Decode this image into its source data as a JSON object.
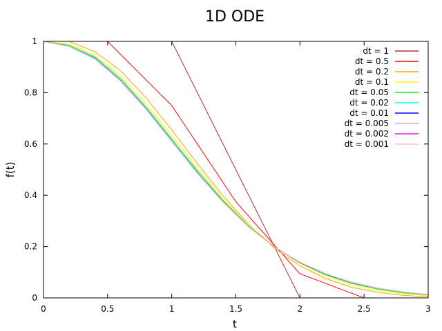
{
  "chart_data": {
    "type": "line",
    "title": "1D ODE",
    "xlabel": "t",
    "ylabel": "f(t)",
    "xlim": [
      0,
      3
    ],
    "ylim": [
      0,
      1
    ],
    "xticks": [
      "0",
      "0.5",
      "1",
      "1.5",
      "2",
      "2.5",
      "3"
    ],
    "yticks": [
      "0",
      "0.2",
      "0.4",
      "0.6",
      "0.8",
      "1"
    ],
    "grid": false,
    "legend_position": "top-right",
    "series": [
      {
        "name": "dt = 1",
        "color": "#b03030",
        "x": [
          0,
          1,
          2,
          3
        ],
        "y": [
          1,
          1,
          0,
          0
        ]
      },
      {
        "name": "dt = 0.5",
        "color": "#ff0000",
        "x": [
          0,
          0.5,
          1,
          1.5,
          2,
          2.5,
          3
        ],
        "y": [
          1,
          1,
          0.75,
          0.375,
          0.094,
          0,
          0
        ]
      },
      {
        "name": "dt = 0.2",
        "color": "#ffa500",
        "x": [
          0,
          0.2,
          0.4,
          0.6,
          0.8,
          1,
          1.2,
          1.4,
          1.6,
          1.8,
          2,
          2.2,
          2.4,
          2.6,
          2.8,
          3
        ],
        "y": [
          1,
          1,
          0.96,
          0.886,
          0.78,
          0.655,
          0.524,
          0.398,
          0.287,
          0.195,
          0.125,
          0.075,
          0.042,
          0.022,
          0.01,
          0.004
        ]
      },
      {
        "name": "dt = 0.1",
        "color": "#ffff00",
        "x": [
          0,
          0.2,
          0.4,
          0.6,
          0.8,
          1,
          1.2,
          1.4,
          1.6,
          1.8,
          2,
          2.2,
          2.4,
          2.6,
          2.8,
          3
        ],
        "y": [
          1,
          0.99,
          0.946,
          0.866,
          0.757,
          0.633,
          0.507,
          0.389,
          0.285,
          0.2,
          0.134,
          0.085,
          0.052,
          0.03,
          0.016,
          0.008
        ]
      },
      {
        "name": "dt = 0.05",
        "color": "#00ff00",
        "x": [
          0,
          0.2,
          0.4,
          0.6,
          0.8,
          1,
          1.2,
          1.4,
          1.6,
          1.8,
          2,
          2.2,
          2.4,
          2.6,
          2.8,
          3
        ],
        "y": [
          1,
          0.985,
          0.94,
          0.856,
          0.745,
          0.62,
          0.496,
          0.38,
          0.28,
          0.199,
          0.137,
          0.09,
          0.057,
          0.035,
          0.02,
          0.011
        ]
      },
      {
        "name": "dt = 0.02",
        "color": "#00ffff",
        "x": [
          0,
          0.2,
          0.4,
          0.6,
          0.8,
          1,
          1.2,
          1.4,
          1.6,
          1.8,
          2,
          2.2,
          2.4,
          2.6,
          2.8,
          3
        ],
        "y": [
          1,
          0.982,
          0.936,
          0.85,
          0.739,
          0.614,
          0.49,
          0.376,
          0.278,
          0.199,
          0.138,
          0.092,
          0.06,
          0.037,
          0.022,
          0.013
        ]
      },
      {
        "name": "dt = 0.01",
        "color": "#0000ff",
        "x": [
          0,
          0.2,
          0.4,
          0.6,
          0.8,
          1,
          1.2,
          1.4,
          1.6,
          1.8,
          2,
          2.2,
          2.4,
          2.6,
          2.8,
          3
        ],
        "y": [
          1,
          0.981,
          0.934,
          0.848,
          0.737,
          0.612,
          0.488,
          0.375,
          0.278,
          0.199,
          0.138,
          0.093,
          0.06,
          0.038,
          0.023,
          0.013
        ]
      },
      {
        "name": "dt = 0.005",
        "color": "#dda0dd",
        "x": [
          0,
          0.2,
          0.4,
          0.6,
          0.8,
          1,
          1.2,
          1.4,
          1.6,
          1.8,
          2,
          2.2,
          2.4,
          2.6,
          2.8,
          3
        ],
        "y": [
          1,
          0.981,
          0.933,
          0.847,
          0.736,
          0.611,
          0.487,
          0.374,
          0.277,
          0.199,
          0.139,
          0.094,
          0.061,
          0.038,
          0.023,
          0.013
        ]
      },
      {
        "name": "dt = 0.002",
        "color": "#ff00ff",
        "x": [
          0,
          0.2,
          0.4,
          0.6,
          0.8,
          1,
          1.2,
          1.4,
          1.6,
          1.8,
          2,
          2.2,
          2.4,
          2.6,
          2.8,
          3
        ],
        "y": [
          1,
          0.98,
          0.932,
          0.846,
          0.735,
          0.61,
          0.486,
          0.374,
          0.277,
          0.199,
          0.139,
          0.094,
          0.061,
          0.039,
          0.023,
          0.013
        ]
      },
      {
        "name": "dt = 0.001",
        "color": "#ffc0cb",
        "x": [
          0,
          0.2,
          0.4,
          0.6,
          0.8,
          1,
          1.2,
          1.4,
          1.6,
          1.8,
          2,
          2.2,
          2.4,
          2.6,
          2.8,
          3
        ],
        "y": [
          1,
          0.98,
          0.932,
          0.846,
          0.735,
          0.61,
          0.486,
          0.374,
          0.277,
          0.199,
          0.139,
          0.094,
          0.061,
          0.039,
          0.023,
          0.013
        ]
      }
    ]
  }
}
